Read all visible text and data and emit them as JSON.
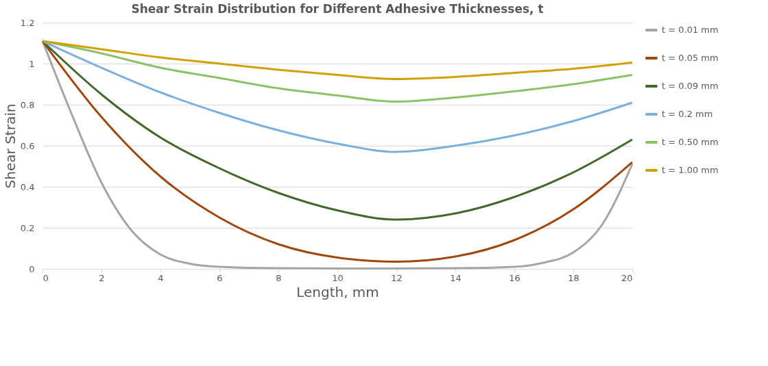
{
  "chart_data": {
    "type": "line",
    "title": "Shear Strain Distribution for Different Adhesive Thicknesses, t",
    "xlabel": "Length, mm",
    "ylabel": "Shear Strain",
    "xlim": [
      0,
      20
    ],
    "xticks": [
      0,
      2,
      4,
      6,
      8,
      10,
      12,
      14,
      16,
      18,
      20
    ],
    "ylim": [
      0,
      1.2
    ],
    "yticks": [
      0,
      0.2,
      0.4,
      0.6,
      0.8,
      1,
      1.2
    ],
    "grid": "y",
    "legend": "right",
    "marker": "none",
    "line_style": "solid",
    "series": [
      {
        "name": "t = 0.01 mm",
        "color": "#a5a5a5",
        "x": [
          0,
          1,
          2,
          3,
          4,
          5,
          6,
          8,
          10,
          12,
          14,
          16,
          17,
          18,
          19,
          20
        ],
        "values": [
          1.11,
          0.75,
          0.42,
          0.19,
          0.07,
          0.025,
          0.01,
          0.003,
          0.002,
          0.002,
          0.003,
          0.01,
          0.03,
          0.08,
          0.22,
          0.51
        ]
      },
      {
        "name": "t = 0.05 mm",
        "color": "#9e480e",
        "x": [
          0,
          2,
          4,
          6,
          8,
          10,
          12,
          14,
          16,
          18,
          20
        ],
        "values": [
          1.11,
          0.74,
          0.45,
          0.25,
          0.12,
          0.055,
          0.035,
          0.06,
          0.14,
          0.29,
          0.52
        ]
      },
      {
        "name": "t = 0.09 mm",
        "color": "#43682b",
        "x": [
          0,
          2,
          4,
          6,
          8,
          10,
          12,
          14,
          16,
          18,
          20
        ],
        "values": [
          1.11,
          0.85,
          0.64,
          0.49,
          0.37,
          0.285,
          0.24,
          0.27,
          0.35,
          0.47,
          0.63
        ]
      },
      {
        "name": "t = 0.2 mm",
        "color": "#7cafdd",
        "x": [
          0,
          2,
          4,
          6,
          8,
          10,
          12,
          14,
          16,
          18,
          20
        ],
        "values": [
          1.11,
          0.98,
          0.86,
          0.76,
          0.675,
          0.61,
          0.57,
          0.6,
          0.65,
          0.72,
          0.81
        ]
      },
      {
        "name": "t = 0.50 mm",
        "color": "#8cc168",
        "x": [
          0,
          2,
          4,
          6,
          8,
          10,
          12,
          14,
          16,
          18,
          20
        ],
        "values": [
          1.11,
          1.05,
          0.98,
          0.93,
          0.88,
          0.845,
          0.815,
          0.835,
          0.865,
          0.9,
          0.945
        ]
      },
      {
        "name": "t = 1.00 mm",
        "color": "#d4a000",
        "x": [
          0,
          2,
          4,
          6,
          8,
          10,
          12,
          14,
          16,
          18,
          20
        ],
        "values": [
          1.11,
          1.07,
          1.03,
          1.0,
          0.97,
          0.945,
          0.925,
          0.935,
          0.955,
          0.975,
          1.005
        ]
      }
    ]
  }
}
